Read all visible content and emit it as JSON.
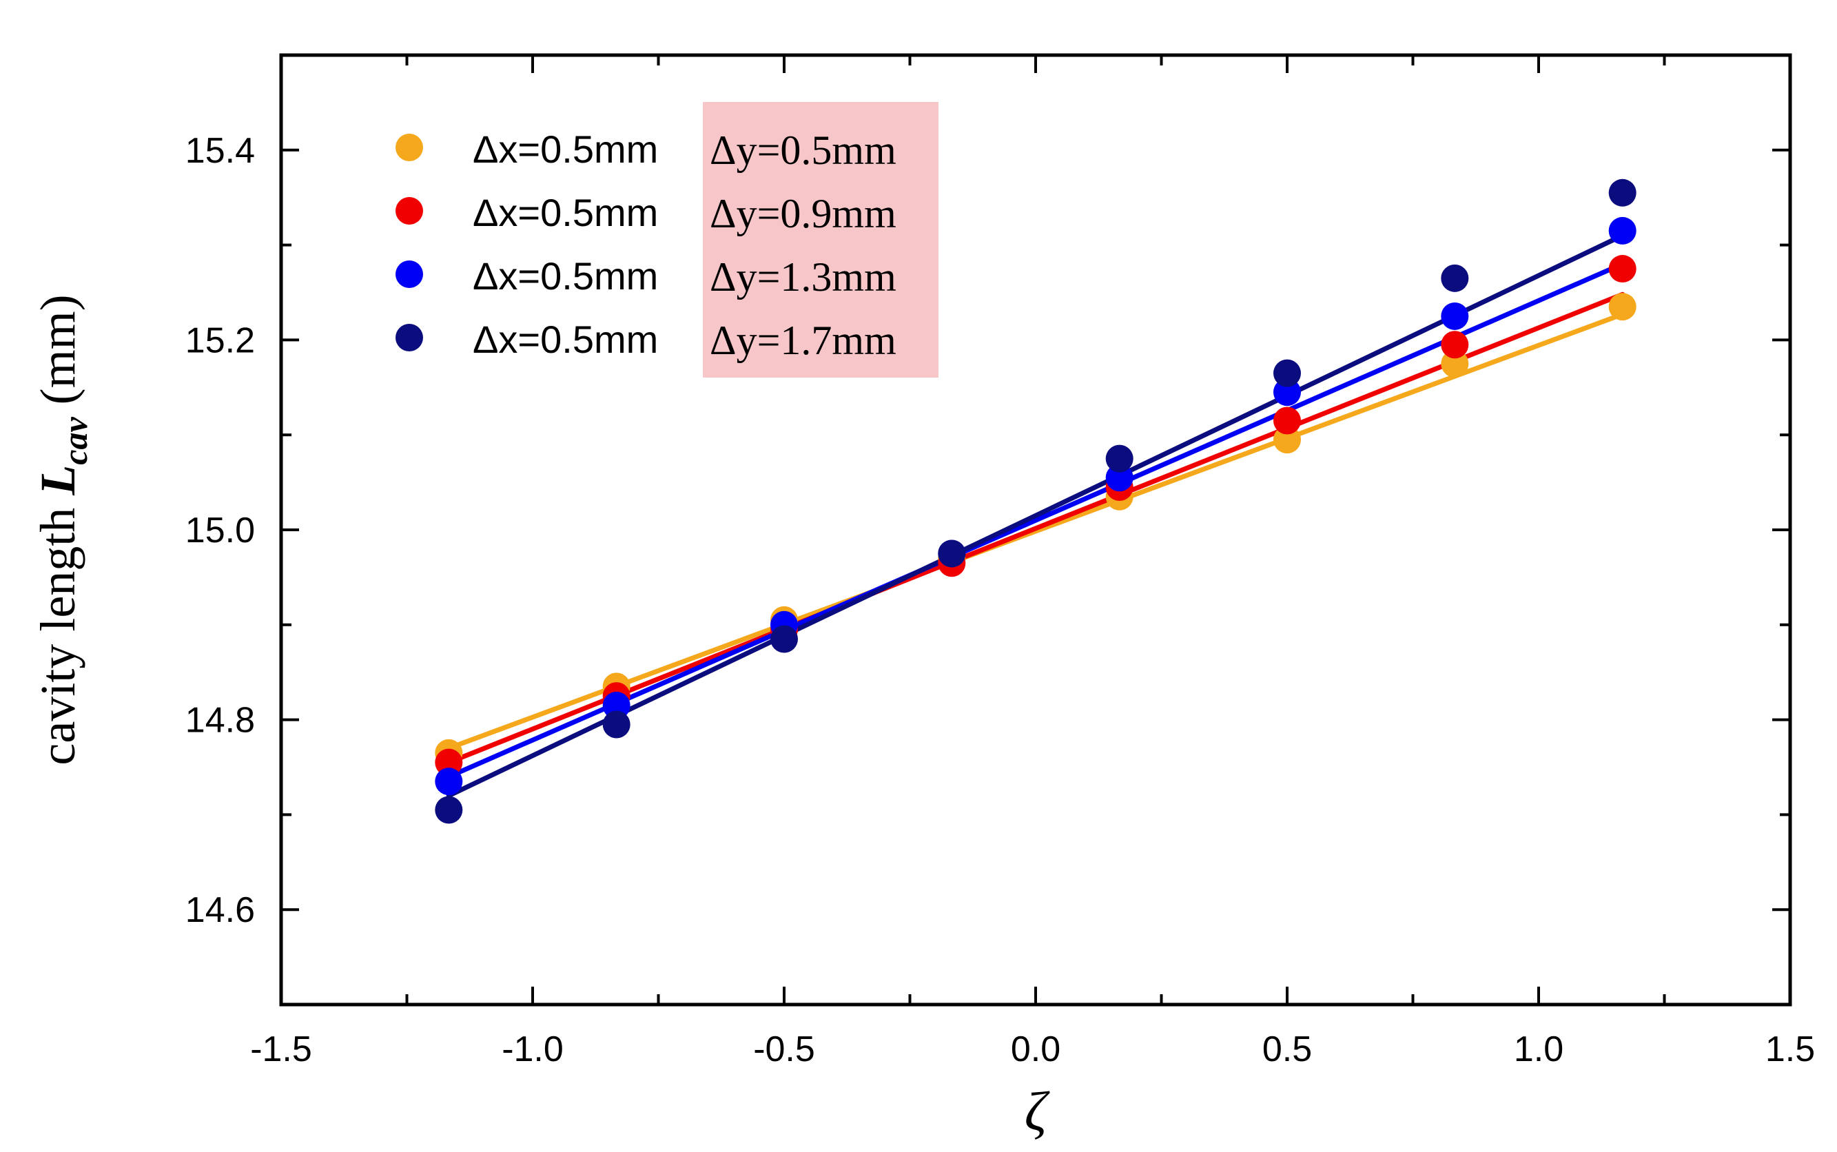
{
  "chart_data": {
    "type": "scatter",
    "title": "",
    "xlabel": "ζ",
    "ylabel_prefix": "cavity length ",
    "ylabel_symbol": "L",
    "ylabel_subscript": "cav",
    "ylabel_suffix": " (mm)",
    "xlim": [
      -1.5,
      1.5
    ],
    "ylim": [
      14.5,
      15.5
    ],
    "xticks": [
      -1.5,
      -1.0,
      -0.5,
      0.0,
      0.5,
      1.0,
      1.5
    ],
    "xtick_labels": [
      "-1.5",
      "-1.0",
      "-0.5",
      "0.0",
      "0.5",
      "1.0",
      "1.5"
    ],
    "yticks": [
      14.6,
      14.8,
      15.0,
      15.2,
      15.4
    ],
    "ytick_labels": [
      "14.6",
      "14.8",
      "15.0",
      "15.2",
      "15.4"
    ],
    "legend_position": "top-left",
    "legend_highlight_color": "#f6c6c8",
    "x": [
      -1.1667,
      -0.8333,
      -0.5,
      -0.1667,
      0.1667,
      0.5,
      0.8333,
      1.1667
    ],
    "series": [
      {
        "name_dx": "Δx=0.5mm",
        "name_dy": "Δy=0.5mm",
        "color": "#f5a81c",
        "values": [
          14.765,
          14.835,
          14.905,
          14.97,
          15.035,
          15.095,
          15.175,
          15.235
        ],
        "fit_start": 14.77,
        "fit_end": 15.227
      },
      {
        "name_dx": "Δx=0.5mm",
        "name_dy": "Δy=0.9mm",
        "color": "#f00000",
        "values": [
          14.755,
          14.825,
          14.895,
          14.965,
          15.045,
          15.115,
          15.195,
          15.275
        ],
        "fit_start": 14.755,
        "fit_end": 15.248
      },
      {
        "name_dx": "Δx=0.5mm",
        "name_dy": "Δy=1.3mm",
        "color": "#0000f5",
        "values": [
          14.735,
          14.815,
          14.9,
          14.975,
          15.055,
          15.145,
          15.225,
          15.315
        ],
        "fit_start": 14.74,
        "fit_end": 15.28
      },
      {
        "name_dx": "Δx=0.5mm",
        "name_dy": "Δy=1.7mm",
        "color": "#0b0c7e",
        "values": [
          14.705,
          14.795,
          14.885,
          14.975,
          15.075,
          15.165,
          15.265,
          15.355
        ],
        "fit_start": 14.72,
        "fit_end": 15.31
      }
    ]
  }
}
